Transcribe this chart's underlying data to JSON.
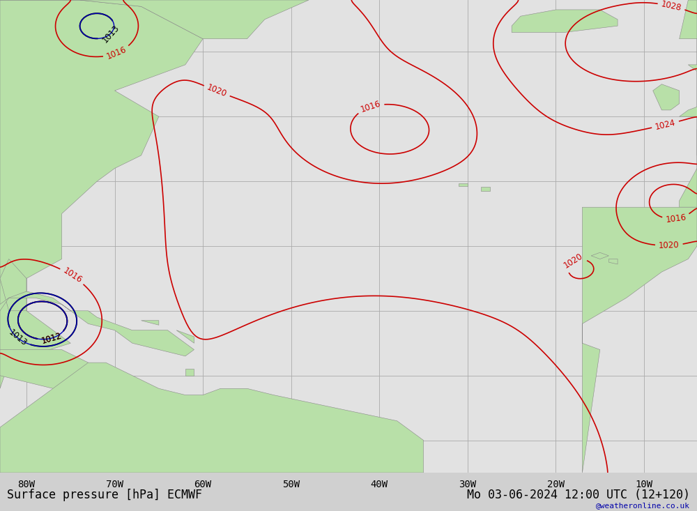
{
  "title_left": "Surface pressure [hPa] ECMWF",
  "title_right": "Mo 03-06-2024 12:00 UTC (12+120)",
  "watermark": "@weatheronline.co.uk",
  "background_color": "#d0d0d0",
  "land_color": "#b8e0a8",
  "ocean_color": "#e2e2e2",
  "grid_color": "#aaaaaa",
  "contour_red_color": "#cc0000",
  "contour_blue_color": "#0000bb",
  "contour_black_color": "#000000",
  "font_size_title": 12,
  "font_size_labels": 10,
  "font_size_watermark": 8,
  "figsize": [
    10.0,
    7.33
  ],
  "dpi": 100,
  "lon_min": -83,
  "lon_max": -4,
  "lat_min": -5,
  "lat_max": 68
}
